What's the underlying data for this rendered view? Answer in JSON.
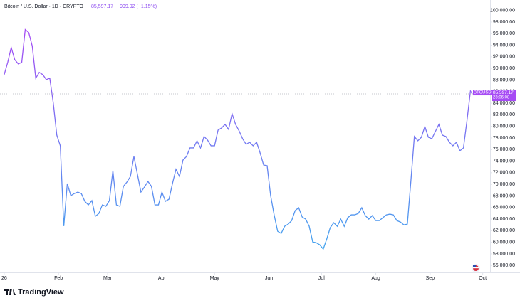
{
  "header": {
    "title": "Bitcoin / U.S. Dollar · 1D · CRYPTO",
    "price": "85,597.17",
    "change": "−999.92 (−1.15%)",
    "countdown": "23:06:08",
    "brand": "TradingView"
  },
  "chart_data": {
    "type": "line",
    "series": [
      {
        "name": "BTCUSD",
        "gradient": [
          "#a64bf4",
          "#3fa6ee"
        ],
        "x": [
          0,
          2,
          4,
          6,
          8,
          10,
          12,
          14,
          16,
          18,
          20,
          22,
          24,
          26,
          28,
          30,
          32,
          34,
          36,
          38,
          40,
          42,
          44,
          46,
          48,
          50,
          52,
          54,
          56,
          58,
          60,
          62,
          64,
          66,
          68,
          70,
          72,
          74,
          76,
          78,
          80,
          82,
          84,
          86,
          88,
          90,
          92,
          94,
          96,
          98,
          100,
          102,
          104,
          106,
          108,
          110,
          112,
          114,
          116,
          118,
          120,
          122,
          124,
          126,
          128,
          130,
          132,
          134,
          136,
          138,
          140,
          142,
          144,
          146,
          148,
          150,
          152,
          154,
          156,
          158,
          160,
          162,
          164,
          166,
          168,
          170,
          172,
          174,
          176,
          178,
          180,
          182,
          184,
          186,
          188,
          190,
          192,
          194,
          196,
          198,
          200,
          202,
          204,
          206,
          208,
          210,
          212,
          214,
          216,
          218,
          220,
          222,
          224,
          226,
          228,
          230,
          232,
          234,
          236,
          238,
          240,
          242,
          244,
          246,
          248,
          250,
          252,
          254,
          256,
          258,
          260,
          262,
          264,
          266,
          267
        ],
        "values": [
          88940,
          91030,
          93610,
          91520,
          90780,
          91030,
          96700,
          96190,
          93860,
          88320,
          89310,
          88940,
          88080,
          88320,
          84020,
          78490,
          76650,
          62800,
          70140,
          68050,
          68410,
          68660,
          68410,
          67060,
          66450,
          67190,
          64480,
          64970,
          66450,
          66200,
          67190,
          72350,
          66450,
          66200,
          69640,
          70380,
          71360,
          74800,
          71730,
          68660,
          69520,
          70500,
          69640,
          66450,
          66450,
          68660,
          67060,
          67430,
          70140,
          72590,
          71360,
          74190,
          74800,
          76280,
          76280,
          77510,
          76280,
          78250,
          77630,
          76650,
          76650,
          79350,
          79720,
          80340,
          79470,
          82180,
          80340,
          79230,
          77880,
          76900,
          77260,
          76650,
          77260,
          75420,
          73330,
          73210,
          68050,
          64730,
          61900,
          61530,
          62760,
          63130,
          63740,
          65470,
          65960,
          64360,
          63990,
          62760,
          60060,
          59930,
          59570,
          58830,
          60550,
          62520,
          63380,
          62760,
          63990,
          62760,
          64240,
          64730,
          64730,
          64970,
          65960,
          64600,
          63990,
          64600,
          63740,
          63740,
          64240,
          64730,
          64850,
          64730,
          63740,
          63500,
          63010,
          63130,
          70500,
          78250,
          77510,
          78120,
          79970,
          78120,
          77880,
          79110,
          80340,
          78490,
          78250,
          77260,
          76650,
          77260,
          75790,
          76280,
          80950,
          86110,
          85597.17
        ]
      }
    ],
    "xlim": [
      -2.4,
      277.2
    ],
    "xticks": [
      {
        "value": 0,
        "label": "26"
      },
      {
        "value": 31,
        "label": "Feb"
      },
      {
        "value": 59,
        "label": "Mar"
      },
      {
        "value": 90,
        "label": "Apr"
      },
      {
        "value": 120,
        "label": "May"
      },
      {
        "value": 151,
        "label": "Jun"
      },
      {
        "value": 181,
        "label": "Jul"
      },
      {
        "value": 212,
        "label": "Aug"
      },
      {
        "value": 243,
        "label": "Sep"
      },
      {
        "value": 273,
        "label": "Oct"
      }
    ],
    "ylim": [
      54800,
      101800
    ],
    "yticks": [
      {
        "value": 56000,
        "label": "56,000.00"
      },
      {
        "value": 58000,
        "label": "58,000.00"
      },
      {
        "value": 60000,
        "label": "60,000.00"
      },
      {
        "value": 62000,
        "label": "62,000.00"
      },
      {
        "value": 64000,
        "label": "64,000.00"
      },
      {
        "value": 66000,
        "label": "66,000.00"
      },
      {
        "value": 68000,
        "label": "68,000.00"
      },
      {
        "value": 70000,
        "label": "70,000.00"
      },
      {
        "value": 72000,
        "label": "72,000.00"
      },
      {
        "value": 74000,
        "label": "74,000.00"
      },
      {
        "value": 76000,
        "label": "76,000.00"
      },
      {
        "value": 78000,
        "label": "78,000.00"
      },
      {
        "value": 80000,
        "label": "80,000.00"
      },
      {
        "value": 82000,
        "label": "82,000.00"
      },
      {
        "value": 84000,
        "label": "84,000.00"
      },
      {
        "value": 86000,
        "label": "86,000.00"
      },
      {
        "value": 88000,
        "label": "88,000.00"
      },
      {
        "value": 90000,
        "label": "90,000.00"
      },
      {
        "value": 92000,
        "label": "92,000.00"
      },
      {
        "value": 94000,
        "label": "94,000.00"
      },
      {
        "value": 96000,
        "label": "96,000.00"
      },
      {
        "value": 98000,
        "label": "98,000.00"
      },
      {
        "value": 100000,
        "label": "100,000.00"
      }
    ],
    "grid": false
  }
}
